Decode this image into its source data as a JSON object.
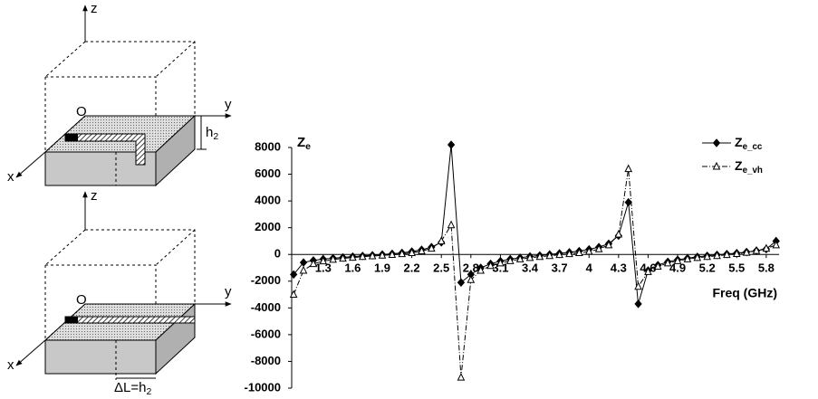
{
  "diagrams": [
    {
      "z": "z",
      "y": "y",
      "x": "x",
      "origin": "O",
      "dimension": "h2"
    },
    {
      "z": "z",
      "y": "y",
      "x": "x",
      "origin": "O",
      "dimension": "ΔL=h2"
    }
  ],
  "chart_data": {
    "type": "line",
    "y_label": "Ze",
    "x_label": "Freq (GHz)",
    "x": [
      1.0,
      1.1,
      1.2,
      1.3,
      1.4,
      1.5,
      1.6,
      1.7,
      1.8,
      1.9,
      2.0,
      2.1,
      2.2,
      2.3,
      2.4,
      2.5,
      2.6,
      2.7,
      2.8,
      2.9,
      3.0,
      3.1,
      3.2,
      3.3,
      3.4,
      3.5,
      3.6,
      3.7,
      3.8,
      3.9,
      4.0,
      4.1,
      4.2,
      4.3,
      4.4,
      4.5,
      4.6,
      4.7,
      4.8,
      4.9,
      5.0,
      5.1,
      5.2,
      5.3,
      5.4,
      5.5,
      5.6,
      5.7,
      5.8,
      5.9
    ],
    "series": [
      {
        "name": "Ze_cc",
        "color": "#000000",
        "marker": "diamond",
        "dash": "solid",
        "values": [
          -1500,
          -600,
          -450,
          -350,
          -280,
          -220,
          -160,
          -110,
          -60,
          0,
          50,
          120,
          220,
          350,
          550,
          900,
          8200,
          -2100,
          -1500,
          -1000,
          -700,
          -500,
          -350,
          -250,
          -150,
          -80,
          0,
          80,
          160,
          250,
          380,
          550,
          800,
          1400,
          3900,
          -3700,
          -1200,
          -800,
          -550,
          -400,
          -280,
          -180,
          -100,
          -30,
          30,
          100,
          180,
          280,
          400,
          1000
        ]
      },
      {
        "name": "Ze_vh",
        "color": "#000000",
        "marker": "triangle",
        "dash": "dashdot",
        "values": [
          -3000,
          -1200,
          -700,
          -500,
          -380,
          -300,
          -230,
          -170,
          -120,
          -70,
          -20,
          40,
          120,
          250,
          450,
          1000,
          2200,
          -9200,
          -1900,
          -1200,
          -850,
          -650,
          -480,
          -350,
          -250,
          -170,
          -100,
          -30,
          40,
          120,
          220,
          400,
          700,
          1500,
          6400,
          -2400,
          -1300,
          -900,
          -650,
          -480,
          -350,
          -250,
          -170,
          -100,
          -30,
          50,
          140,
          280,
          450,
          700
        ]
      }
    ],
    "xlim": [
      0.98,
      5.93
    ],
    "xticks": [
      1.3,
      1.6,
      1.9,
      2.2,
      2.5,
      2.8,
      3.1,
      3.4,
      3.7,
      4,
      4.3,
      4.6,
      4.9,
      5.2,
      5.5,
      5.8
    ],
    "ylim": [
      -10000,
      8000
    ],
    "yticks": [
      -10000,
      -8000,
      -6000,
      -4000,
      -2000,
      0,
      2000,
      4000,
      6000,
      8000
    ],
    "legend": "top-right"
  }
}
